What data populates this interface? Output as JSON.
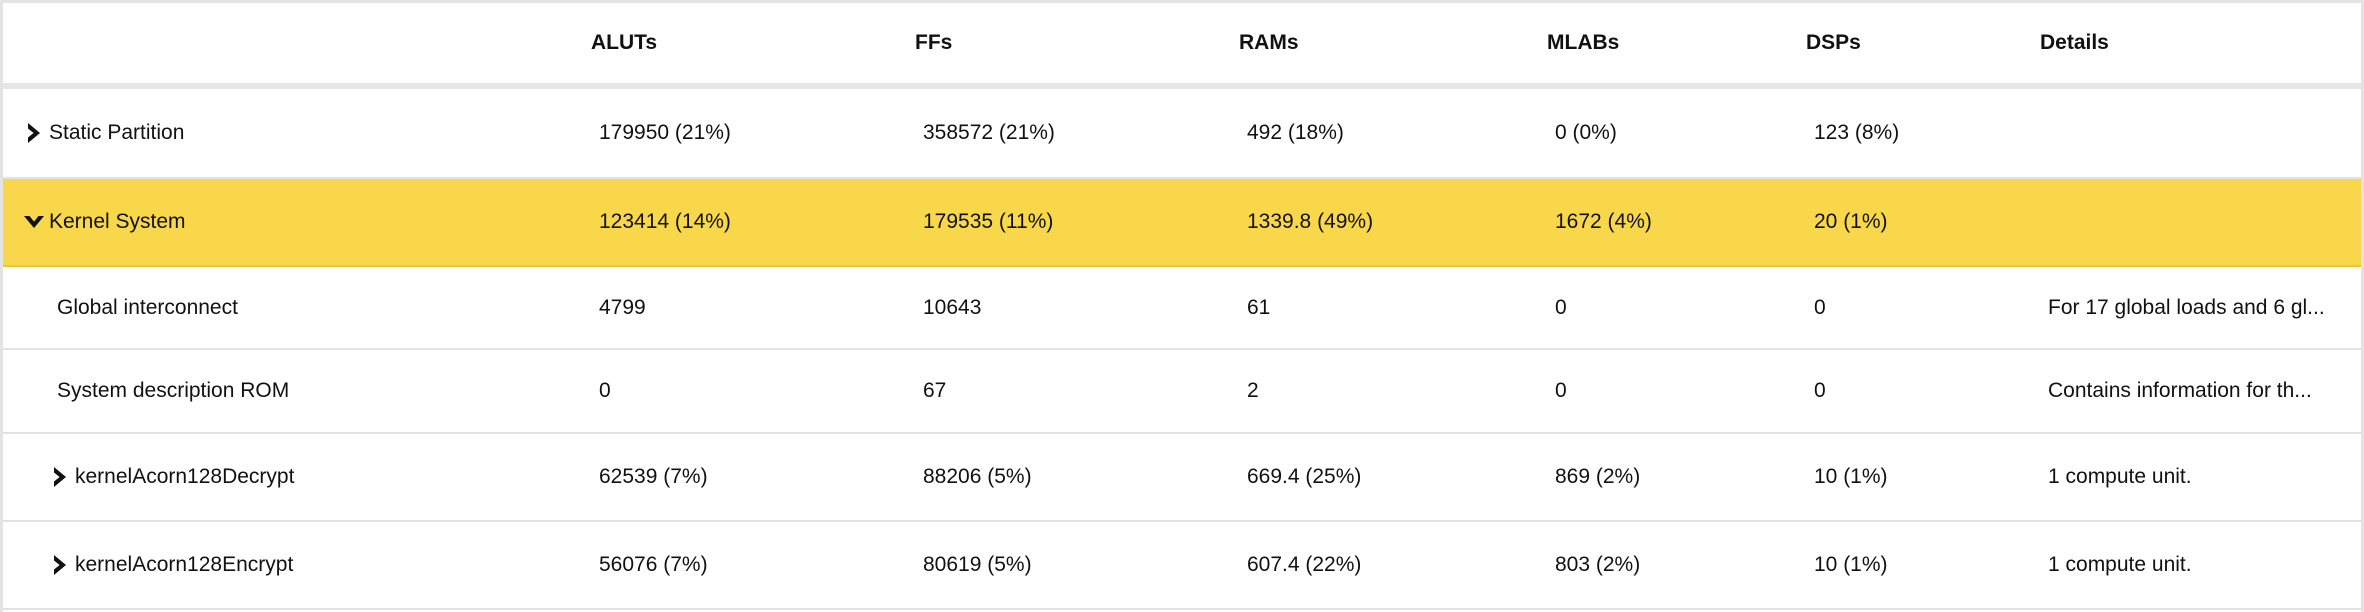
{
  "columns": {
    "name": "",
    "aluts": "ALUTs",
    "ffs": "FFs",
    "rams": "RAMs",
    "mlabs": "MLABs",
    "dsps": "DSPs",
    "details": "Details"
  },
  "icons": {
    "expand": "chevron-right-icon",
    "collapse": "chevron-down-icon"
  },
  "colors": {
    "highlight": "#f8d74a",
    "header_rule": "#e6e6e6",
    "row_rule": "#e2e2e2"
  },
  "rows": [
    {
      "name": "Static Partition",
      "expanded": false,
      "aluts": "179950 (21%)",
      "ffs": "358572 (21%)",
      "rams": "492 (18%)",
      "mlabs": "0 (0%)",
      "dsps": "123 (8%)",
      "details": ""
    },
    {
      "name": "Kernel System",
      "expanded": true,
      "selected": true,
      "aluts": "123414 (14%)",
      "ffs": "179535 (11%)",
      "rams": "1339.8 (49%)",
      "mlabs": "1672 (4%)",
      "dsps": "20 (1%)",
      "details": ""
    },
    {
      "name": "Global interconnect",
      "aluts": "4799",
      "ffs": "10643",
      "rams": "61",
      "mlabs": "0",
      "dsps": "0",
      "details": "For 17 global loads and 6 gl..."
    },
    {
      "name": "System description ROM",
      "aluts": "0",
      "ffs": "67",
      "rams": "2",
      "mlabs": "0",
      "dsps": "0",
      "details": "Contains information for th..."
    },
    {
      "name": "kernelAcorn128Decrypt",
      "expanded": false,
      "aluts": "62539 (7%)",
      "ffs": "88206 (5%)",
      "rams": "669.4 (25%)",
      "mlabs": "869 (2%)",
      "dsps": "10 (1%)",
      "details": "1 compute unit."
    },
    {
      "name": "kernelAcorn128Encrypt",
      "expanded": false,
      "aluts": "56076 (7%)",
      "ffs": "80619 (5%)",
      "rams": "607.4 (22%)",
      "mlabs": "803 (2%)",
      "dsps": "10 (1%)",
      "details": "1 compute unit."
    }
  ]
}
